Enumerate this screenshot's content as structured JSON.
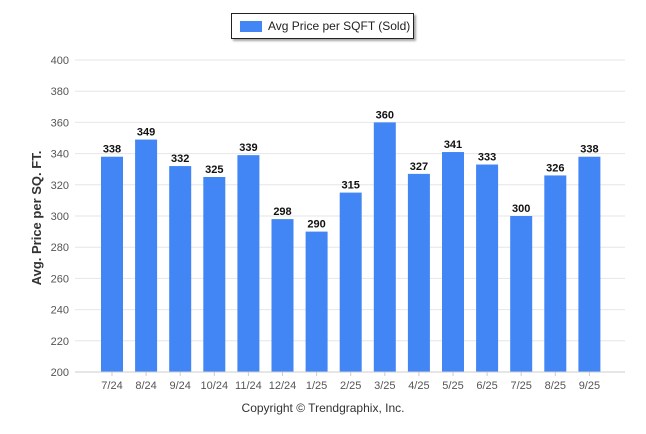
{
  "chart_data": {
    "type": "bar",
    "categories": [
      "7/24",
      "8/24",
      "9/24",
      "10/24",
      "11/24",
      "12/24",
      "1/25",
      "2/25",
      "3/25",
      "4/25",
      "5/25",
      "6/25",
      "7/25",
      "8/25",
      "9/25"
    ],
    "series": [
      {
        "name": "Avg Price per SQFT (Sold)",
        "values": [
          338,
          349,
          332,
          325,
          339,
          298,
          290,
          315,
          360,
          327,
          341,
          333,
          300,
          326,
          338
        ]
      }
    ],
    "ylabel": "Avg. Price per SQ. FT.",
    "xlabel": "",
    "ylim": [
      200,
      400
    ],
    "yticks": [
      200,
      220,
      240,
      260,
      280,
      300,
      320,
      340,
      360,
      380,
      400
    ],
    "grid": true,
    "legend_position": "top-center",
    "data_labels": true,
    "bar_color": "#4285f4"
  },
  "legend": {
    "label": "Avg Price per SQFT (Sold)"
  },
  "footer": {
    "copyright": "Copyright © Trendgraphix, Inc."
  }
}
